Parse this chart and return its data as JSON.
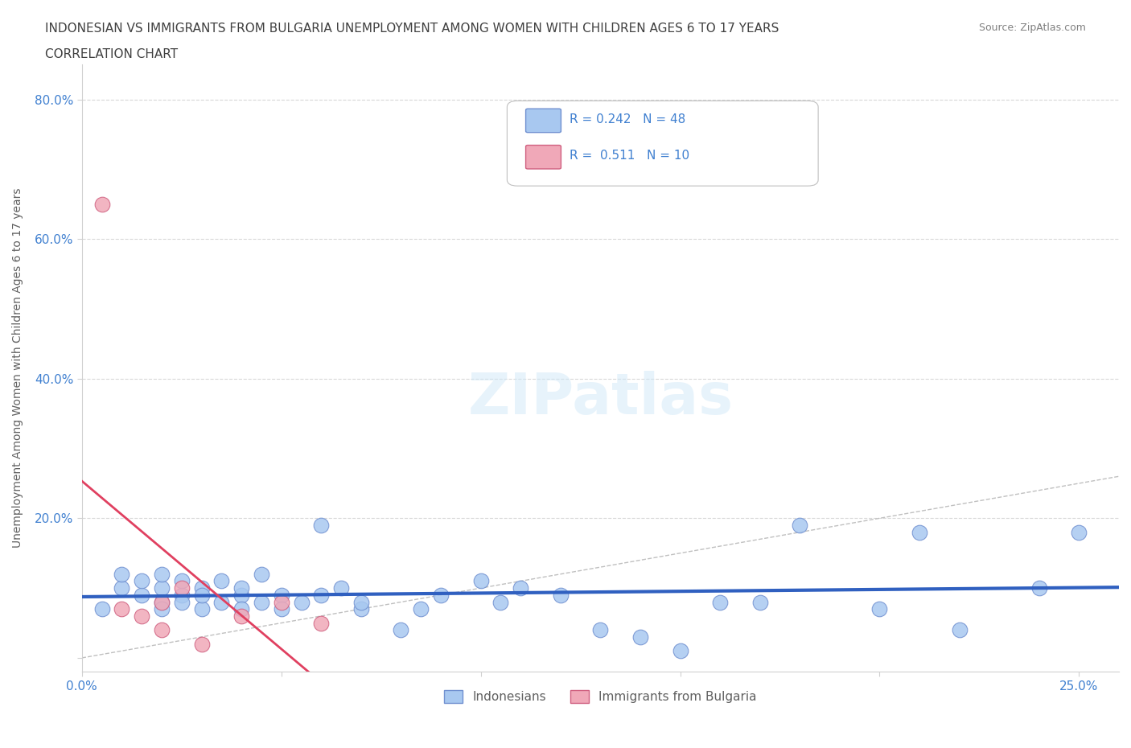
{
  "title_line1": "INDONESIAN VS IMMIGRANTS FROM BULGARIA UNEMPLOYMENT AMONG WOMEN WITH CHILDREN AGES 6 TO 17 YEARS",
  "title_line2": "CORRELATION CHART",
  "source": "Source: ZipAtlas.com",
  "xlabel_ticks": [
    0.0,
    0.05,
    0.1,
    0.15,
    0.2,
    0.25
  ],
  "xlabel_tick_labels": [
    "0.0%",
    "",
    "",
    "",
    "",
    "25.0%"
  ],
  "ylabel_ticks": [
    0.0,
    0.2,
    0.4,
    0.6,
    0.8
  ],
  "ylabel_tick_labels": [
    "",
    "20.0%",
    "40.0%",
    "60.0%",
    "80.0%"
  ],
  "xlim": [
    0.0,
    0.26
  ],
  "ylim": [
    -0.02,
    0.85
  ],
  "indonesian_x": [
    0.005,
    0.01,
    0.01,
    0.015,
    0.015,
    0.02,
    0.02,
    0.02,
    0.02,
    0.025,
    0.025,
    0.025,
    0.03,
    0.03,
    0.03,
    0.035,
    0.035,
    0.04,
    0.04,
    0.04,
    0.045,
    0.045,
    0.05,
    0.05,
    0.055,
    0.06,
    0.06,
    0.065,
    0.07,
    0.07,
    0.08,
    0.085,
    0.09,
    0.1,
    0.105,
    0.11,
    0.12,
    0.13,
    0.14,
    0.15,
    0.16,
    0.17,
    0.18,
    0.2,
    0.21,
    0.22,
    0.24,
    0.25
  ],
  "indonesian_y": [
    0.07,
    0.1,
    0.12,
    0.09,
    0.11,
    0.08,
    0.1,
    0.12,
    0.07,
    0.09,
    0.11,
    0.08,
    0.1,
    0.07,
    0.09,
    0.08,
    0.11,
    0.09,
    0.07,
    0.1,
    0.08,
    0.12,
    0.09,
    0.07,
    0.08,
    0.19,
    0.09,
    0.1,
    0.07,
    0.08,
    0.04,
    0.07,
    0.09,
    0.11,
    0.08,
    0.1,
    0.09,
    0.04,
    0.03,
    0.01,
    0.08,
    0.08,
    0.19,
    0.07,
    0.18,
    0.04,
    0.1,
    0.18
  ],
  "bulgarian_x": [
    0.005,
    0.01,
    0.015,
    0.02,
    0.02,
    0.03,
    0.04,
    0.05,
    0.06,
    0.025
  ],
  "bulgarian_y": [
    0.65,
    0.07,
    0.06,
    0.08,
    0.04,
    0.02,
    0.06,
    0.08,
    0.05,
    0.1
  ],
  "indonesian_color": "#a8c8f0",
  "bulgarian_color": "#f0a8b8",
  "indonesian_edge": "#7090d0",
  "bulgarian_edge": "#d06080",
  "trendline_indonesian_color": "#3060c0",
  "trendline_bulgarian_color": "#e04060",
  "diagonal_color": "#c0c0c0",
  "grid_color": "#d8d8d8",
  "R_indonesian": 0.242,
  "N_indonesian": 48,
  "R_bulgarian": 0.511,
  "N_bulgarian": 10,
  "watermark": "ZIPatlas",
  "bg_color": "#ffffff",
  "title_color": "#404040",
  "axis_label_color": "#606060",
  "tick_color": "#4080d0",
  "legend_label1": "Indonesians",
  "legend_label2": "Immigrants from Bulgaria",
  "ylabel": "Unemployment Among Women with Children Ages 6 to 17 years"
}
